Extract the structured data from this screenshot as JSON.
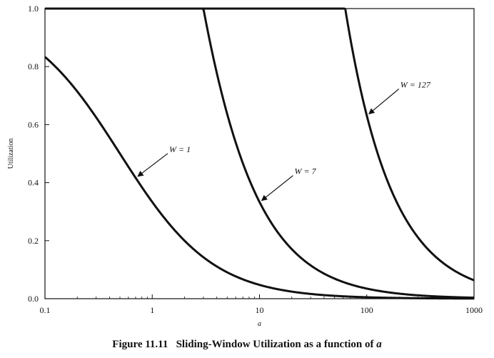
{
  "chart_data": {
    "type": "line",
    "title": "",
    "xlabel": "a",
    "ylabel": "Utilization",
    "x_scale": "log",
    "xlim": [
      0.1,
      1000
    ],
    "ylim": [
      0.0,
      1.0
    ],
    "x_ticks": [
      "0.1",
      "1",
      "10",
      "100",
      "1000"
    ],
    "y_ticks": [
      "0.0",
      "0.2",
      "0.4",
      "0.6",
      "0.8",
      "1.0"
    ],
    "grid": false,
    "legend": "none",
    "series": [
      {
        "name": "W = 1",
        "x": [
          0.1,
          0.2,
          0.5,
          1,
          2,
          5,
          10,
          20,
          50,
          100,
          200,
          500,
          1000
        ],
        "y": [
          0.833,
          0.714,
          0.5,
          0.333,
          0.2,
          0.091,
          0.048,
          0.024,
          0.0099,
          0.005,
          0.0025,
          0.001,
          0.0005
        ]
      },
      {
        "name": "W = 7",
        "x": [
          0.1,
          1,
          3,
          5,
          10,
          20,
          50,
          100,
          200,
          500,
          1000
        ],
        "y": [
          1.0,
          1.0,
          1.0,
          0.636,
          0.333,
          0.171,
          0.069,
          0.035,
          0.0175,
          0.007,
          0.0035
        ]
      },
      {
        "name": "W = 127",
        "x": [
          0.1,
          10,
          63,
          100,
          200,
          500,
          1000
        ],
        "y": [
          1.0,
          1.0,
          1.0,
          0.632,
          0.317,
          0.127,
          0.063
        ]
      }
    ],
    "annotations": [
      {
        "label": "W = 1",
        "series": 0,
        "x": 0.7
      },
      {
        "label": "W = 7",
        "series": 1,
        "x": 10
      },
      {
        "label": "W = 127",
        "series": 2,
        "x": 100
      }
    ]
  },
  "caption": {
    "number": "Figure 11.11",
    "text": "Sliding-Window Utilization as a function of ",
    "var": "a"
  }
}
